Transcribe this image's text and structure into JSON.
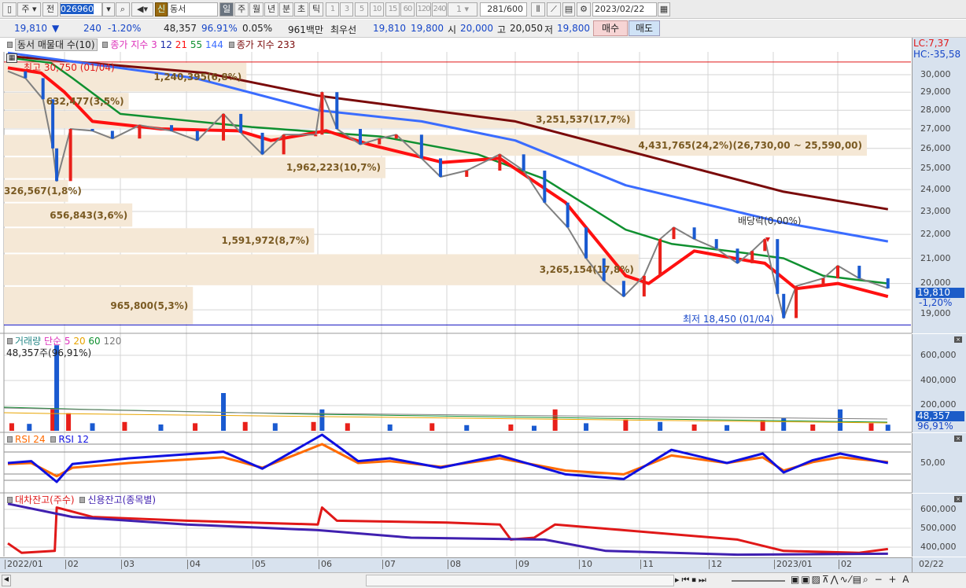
{
  "toolbar": {
    "market": "주",
    "prev": "전",
    "code": "026960",
    "new_badge": "신",
    "name": "동서",
    "periods": [
      "일",
      "주",
      "월",
      "년",
      "분",
      "초",
      "틱"
    ],
    "active_period": "일",
    "minutes": [
      "1",
      "3",
      "5",
      "10",
      "15",
      "60",
      "120",
      "240"
    ],
    "unit": "1",
    "count": "281",
    "count_total": "/600",
    "date": "2023/02/22"
  },
  "quote": {
    "price": "19,810",
    "arrow": "▼",
    "change": "240",
    "change_pct": "-1.20%",
    "volume": "48,357",
    "volume_ratio": "96.91%",
    "turnover": "0.05%",
    "amount": "961백만",
    "best_label": "최우선",
    "ask": "19,810",
    "bid": "19,800",
    "open_label": "시",
    "open": "20,000",
    "high_label": "고",
    "high": "20,050",
    "low_label": "저",
    "low": "19,800",
    "buy": "매수",
    "sell": "매도"
  },
  "legend": {
    "vp": "동서 매물대 수(10)",
    "ma_label": "종가 지수",
    "ma_nums": [
      "3",
      "12",
      "21",
      "55",
      "144"
    ],
    "ma233": "종가 지수 233",
    "volume": "거래량",
    "vol_ma": "단순 5",
    "vol_ma_nums": [
      "20",
      "60",
      "120"
    ],
    "vol_value": "48,357주(96,91%)",
    "rsi24": "RSI 24",
    "rsi12": "RSI 12",
    "loan": "대차잔고(주수)",
    "credit": "신용잔고(종목별)"
  },
  "colors": {
    "ma3": "#dd33bb",
    "ma12": "#1a2aa8",
    "ma21": "#ff1010",
    "ma55": "#109030",
    "ma144": "#3a6cff",
    "ma233": "#7a0a0a",
    "up": "#e8201a",
    "down": "#1a5ad0",
    "vp": "#f5e8d6"
  },
  "price_axis": {
    "lc": "LC:7,37",
    "hc": "HC:-35,58",
    "ticks": [
      "30,000",
      "29,000",
      "28,000",
      "27,000",
      "26,000",
      "25,000",
      "24,000",
      "23,000",
      "22,000",
      "21,000",
      "20,000",
      "19,000"
    ],
    "current": "19,810",
    "current_pct": "-1,20%",
    "scale": "log"
  },
  "annotations": {
    "high": "최고 30,750 (01/04)",
    "low": "최저 18,450 (01/04)",
    "dividend": "배당락(0,00%)"
  },
  "volume_profile": [
    {
      "range": [
        29000,
        30750
      ],
      "text": "1,240,395(6,8%)",
      "pct": 6.8
    },
    {
      "range": [
        28000,
        29000
      ],
      "text": "632,477(3,5%)",
      "pct": 3.5
    },
    {
      "range": [
        27000,
        28000
      ],
      "text": "3,251,537(17,7%)",
      "pct": 17.7
    },
    {
      "range": [
        25590,
        26730
      ],
      "text": "4,431,765(24,2%)(26,730,00 ~ 25,590,00)",
      "pct": 24.2
    },
    {
      "range": [
        24500,
        25590
      ],
      "text": "1,962,223(10,7%)",
      "pct": 10.7
    },
    {
      "range": [
        23400,
        24500
      ],
      "text": "326,567(1,8%)",
      "pct": 1.8
    },
    {
      "range": [
        22300,
        23400
      ],
      "text": "656,843(3,6%)",
      "pct": 3.6
    },
    {
      "range": [
        21200,
        22300
      ],
      "text": "1,591,972(8,7%)",
      "pct": 8.7
    },
    {
      "range": [
        19900,
        21200
      ],
      "text": "3,265,154(17,8%)",
      "pct": 17.8
    },
    {
      "range": [
        18450,
        19900
      ],
      "text": "965,800(5,3%)",
      "pct": 5.3
    }
  ],
  "volume_axis": {
    "ticks": [
      "600,000",
      "400,000",
      "200,000"
    ],
    "current": "48,357",
    "current_pct": "96,91%"
  },
  "rsi_axis": {
    "ticks": [
      "50,00"
    ]
  },
  "loan_axis": {
    "ticks": [
      "600,000",
      "500,000",
      "400,000"
    ]
  },
  "x_axis": {
    "labels": [
      "2022/01",
      "02",
      "03",
      "04",
      "05",
      "06",
      "07",
      "08",
      "09",
      "10",
      "11",
      "12",
      "2023/01",
      "02"
    ],
    "last": "02/22"
  },
  "chart_data": {
    "type": "line",
    "close": [
      [
        "2022-01-03",
        30200
      ],
      [
        "2022-01-12",
        29800
      ],
      [
        "2022-01-21",
        28600
      ],
      [
        "2022-01-26",
        26000
      ],
      [
        "2022-01-28",
        24400
      ],
      [
        "2022-02-04",
        27000
      ],
      [
        "2022-02-15",
        26900
      ],
      [
        "2022-02-25",
        26500
      ],
      [
        "2022-03-10",
        27200
      ],
      [
        "2022-03-25",
        26900
      ],
      [
        "2022-04-06",
        26400
      ],
      [
        "2022-04-18",
        27800
      ],
      [
        "2022-04-26",
        26800
      ],
      [
        "2022-05-06",
        25700
      ],
      [
        "2022-05-16",
        26700
      ],
      [
        "2022-05-31",
        26700
      ],
      [
        "2022-06-03",
        29000
      ],
      [
        "2022-06-10",
        27000
      ],
      [
        "2022-06-21",
        26200
      ],
      [
        "2022-06-30",
        26500
      ],
      [
        "2022-07-08",
        26700
      ],
      [
        "2022-07-20",
        25500
      ],
      [
        "2022-07-29",
        24600
      ],
      [
        "2022-08-10",
        24900
      ],
      [
        "2022-08-25",
        25700
      ],
      [
        "2022-09-05",
        24900
      ],
      [
        "2022-09-15",
        23400
      ],
      [
        "2022-09-26",
        22300
      ],
      [
        "2022-10-05",
        21000
      ],
      [
        "2022-10-14",
        20100
      ],
      [
        "2022-10-24",
        19500
      ],
      [
        "2022-11-03",
        20300
      ],
      [
        "2022-11-10",
        21800
      ],
      [
        "2022-11-16",
        22300
      ],
      [
        "2022-11-25",
        21800
      ],
      [
        "2022-12-05",
        21400
      ],
      [
        "2022-12-15",
        20800
      ],
      [
        "2022-12-22",
        21300
      ],
      [
        "2022-12-28",
        21800
      ],
      [
        "2023-01-03",
        19600
      ],
      [
        "2023-01-06",
        18700
      ],
      [
        "2023-01-12",
        19900
      ],
      [
        "2023-01-25",
        20200
      ],
      [
        "2023-02-01",
        20700
      ],
      [
        "2023-02-10",
        20200
      ],
      [
        "2023-02-22",
        19810
      ]
    ],
    "ma21": [
      [
        "2022-01-03",
        30400
      ],
      [
        "2022-01-20",
        30100
      ],
      [
        "2022-02-01",
        29000
      ],
      [
        "2022-02-15",
        27400
      ],
      [
        "2022-03-20",
        27000
      ],
      [
        "2022-04-25",
        26900
      ],
      [
        "2022-05-10",
        26400
      ],
      [
        "2022-06-05",
        26900
      ],
      [
        "2022-06-25",
        26200
      ],
      [
        "2022-07-30",
        25300
      ],
      [
        "2022-08-25",
        25500
      ],
      [
        "2022-09-25",
        23400
      ],
      [
        "2022-10-25",
        20300
      ],
      [
        "2022-11-05",
        20000
      ],
      [
        "2022-11-25",
        21300
      ],
      [
        "2022-12-20",
        20900
      ],
      [
        "2022-12-28",
        20800
      ],
      [
        "2023-01-12",
        19800
      ],
      [
        "2023-02-01",
        20000
      ],
      [
        "2023-02-22",
        19500
      ]
    ],
    "ma55": [
      [
        "2022-01-03",
        31000
      ],
      [
        "2022-01-25",
        30700
      ],
      [
        "2022-02-05",
        29800
      ],
      [
        "2022-03-01",
        27800
      ],
      [
        "2022-05-01",
        27100
      ],
      [
        "2022-07-01",
        26600
      ],
      [
        "2022-08-15",
        25700
      ],
      [
        "2022-09-15",
        24500
      ],
      [
        "2022-10-25",
        22200
      ],
      [
        "2022-11-15",
        21600
      ],
      [
        "2022-12-20",
        21200
      ],
      [
        "2023-01-06",
        21000
      ],
      [
        "2023-01-25",
        20300
      ],
      [
        "2023-02-22",
        20000
      ]
    ],
    "ma144": [
      [
        "2022-01-03",
        31300
      ],
      [
        "2022-04-05",
        29800
      ],
      [
        "2022-06-01",
        28000
      ],
      [
        "2022-07-20",
        27400
      ],
      [
        "2022-09-01",
        26400
      ],
      [
        "2022-10-25",
        24200
      ],
      [
        "2023-01-06",
        22500
      ],
      [
        "2023-02-22",
        21700
      ]
    ],
    "ma233": [
      [
        "2022-01-03",
        31100
      ],
      [
        "2022-04-10",
        30100
      ],
      [
        "2022-06-01",
        28800
      ],
      [
        "2022-09-01",
        27400
      ],
      [
        "2022-11-15",
        25300
      ],
      [
        "2023-01-06",
        23900
      ],
      [
        "2023-02-22",
        23100
      ]
    ],
    "volume": [
      [
        "2022-01-05",
        60000
      ],
      [
        "2022-01-14",
        55000
      ],
      [
        "2022-01-26",
        180000
      ],
      [
        "2022-01-28",
        680000
      ],
      [
        "2022-02-03",
        140000
      ],
      [
        "2022-02-15",
        60000
      ],
      [
        "2022-03-03",
        70000
      ],
      [
        "2022-03-20",
        50000
      ],
      [
        "2022-04-05",
        60000
      ],
      [
        "2022-04-18",
        300000
      ],
      [
        "2022-04-28",
        70000
      ],
      [
        "2022-05-12",
        60000
      ],
      [
        "2022-05-30",
        70000
      ],
      [
        "2022-06-03",
        170000
      ],
      [
        "2022-06-15",
        60000
      ],
      [
        "2022-07-05",
        50000
      ],
      [
        "2022-07-25",
        60000
      ],
      [
        "2022-08-10",
        45000
      ],
      [
        "2022-08-30",
        50000
      ],
      [
        "2022-09-10",
        40000
      ],
      [
        "2022-09-20",
        170000
      ],
      [
        "2022-10-05",
        60000
      ],
      [
        "2022-10-25",
        90000
      ],
      [
        "2022-11-10",
        70000
      ],
      [
        "2022-11-25",
        50000
      ],
      [
        "2022-12-10",
        45000
      ],
      [
        "2022-12-27",
        80000
      ],
      [
        "2023-01-06",
        100000
      ],
      [
        "2023-01-20",
        50000
      ],
      [
        "2023-02-02",
        170000
      ],
      [
        "2023-02-15",
        60000
      ],
      [
        "2023-02-22",
        48357
      ]
    ],
    "rsi12": [
      [
        "2022-01-03",
        50
      ],
      [
        "2022-01-15",
        52
      ],
      [
        "2022-01-28",
        30
      ],
      [
        "2022-02-05",
        49
      ],
      [
        "2022-03-05",
        55
      ],
      [
        "2022-04-18",
        62
      ],
      [
        "2022-05-06",
        44
      ],
      [
        "2022-06-03",
        80
      ],
      [
        "2022-06-20",
        52
      ],
      [
        "2022-07-05",
        55
      ],
      [
        "2022-07-29",
        45
      ],
      [
        "2022-08-25",
        58
      ],
      [
        "2022-09-25",
        38
      ],
      [
        "2022-10-24",
        33
      ],
      [
        "2022-11-15",
        64
      ],
      [
        "2022-12-10",
        50
      ],
      [
        "2022-12-27",
        60
      ],
      [
        "2023-01-06",
        40
      ],
      [
        "2023-01-20",
        53
      ],
      [
        "2023-02-02",
        60
      ],
      [
        "2023-02-22",
        50
      ]
    ],
    "rsi24": [
      [
        "2022-01-03",
        49
      ],
      [
        "2022-01-15",
        50
      ],
      [
        "2022-01-28",
        36
      ],
      [
        "2022-02-05",
        45
      ],
      [
        "2022-03-05",
        50
      ],
      [
        "2022-04-18",
        56
      ],
      [
        "2022-05-06",
        45
      ],
      [
        "2022-06-03",
        70
      ],
      [
        "2022-06-20",
        50
      ],
      [
        "2022-07-05",
        52
      ],
      [
        "2022-07-29",
        46
      ],
      [
        "2022-08-25",
        55
      ],
      [
        "2022-09-25",
        42
      ],
      [
        "2022-10-24",
        38
      ],
      [
        "2022-11-15",
        58
      ],
      [
        "2022-12-10",
        50
      ],
      [
        "2022-12-27",
        56
      ],
      [
        "2023-01-06",
        42
      ],
      [
        "2023-01-20",
        51
      ],
      [
        "2023-02-02",
        56
      ],
      [
        "2023-02-22",
        51
      ]
    ],
    "loan": [
      [
        "2022-01-03",
        420000
      ],
      [
        "2022-01-10",
        370000
      ],
      [
        "2022-01-27",
        380000
      ],
      [
        "2022-01-28",
        610000
      ],
      [
        "2022-02-15",
        560000
      ],
      [
        "2022-04-01",
        540000
      ],
      [
        "2022-06-01",
        520000
      ],
      [
        "2022-06-03",
        610000
      ],
      [
        "2022-06-10",
        540000
      ],
      [
        "2022-08-01",
        530000
      ],
      [
        "2022-08-25",
        520000
      ],
      [
        "2022-08-30",
        440000
      ],
      [
        "2022-09-10",
        450000
      ],
      [
        "2022-09-20",
        520000
      ],
      [
        "2022-12-15",
        440000
      ],
      [
        "2023-01-06",
        380000
      ],
      [
        "2023-02-10",
        370000
      ],
      [
        "2023-02-22",
        390000
      ]
    ],
    "credit": [
      [
        "2022-01-03",
        630000
      ],
      [
        "2022-02-05",
        560000
      ],
      [
        "2022-04-01",
        520000
      ],
      [
        "2022-06-01",
        490000
      ],
      [
        "2022-07-15",
        450000
      ],
      [
        "2022-09-15",
        440000
      ],
      [
        "2022-10-15",
        380000
      ],
      [
        "2022-12-15",
        360000
      ],
      [
        "2023-02-22",
        365000
      ]
    ]
  }
}
